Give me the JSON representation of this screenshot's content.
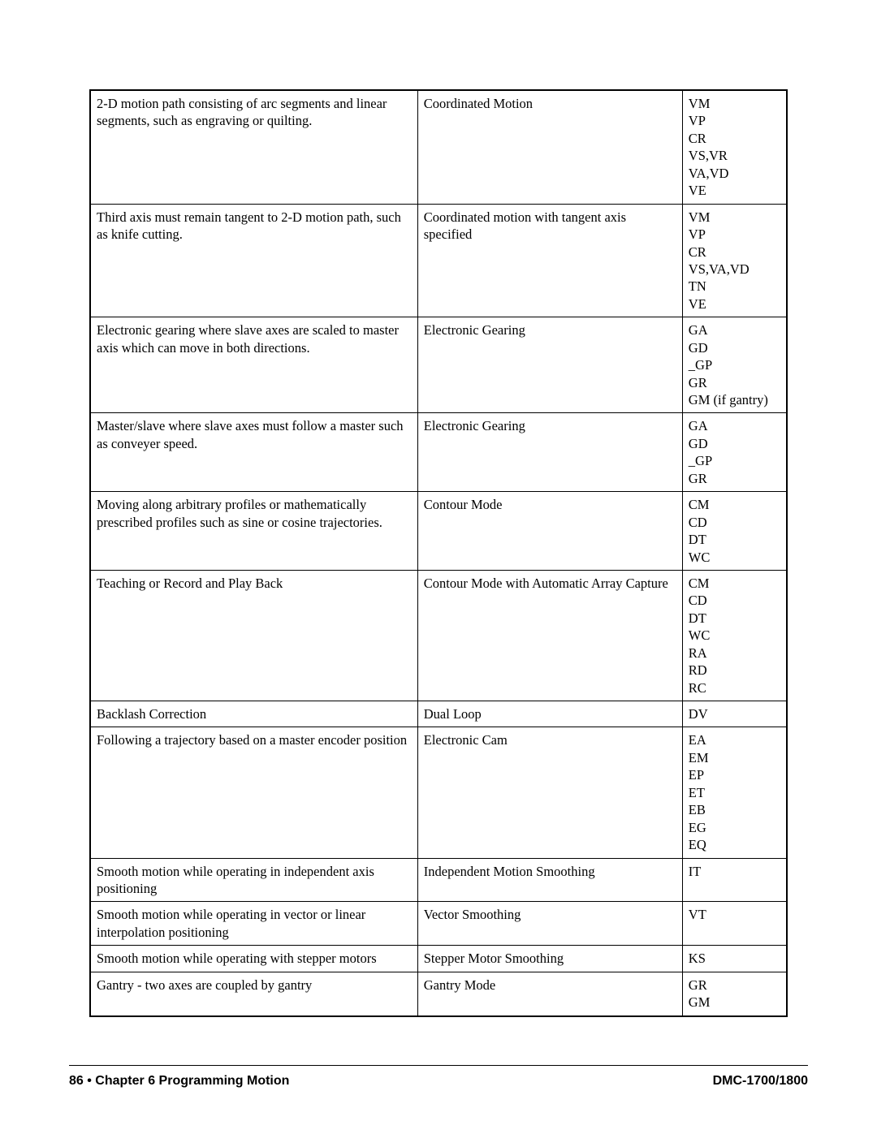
{
  "table": {
    "rows": [
      {
        "desc": "2-D motion path consisting of arc segments and linear segments, such as engraving or quilting.",
        "mode": "Coordinated Motion",
        "cmds": "VM\nVP\nCR\nVS,VR\nVA,VD\nVE"
      },
      {
        "desc": "Third axis must remain tangent to 2-D motion path, such as knife cutting.",
        "mode": "Coordinated motion with tangent axis specified",
        "cmds": "VM\nVP\nCR\nVS,VA,VD\nTN\nVE"
      },
      {
        "desc": "Electronic gearing where slave axes are scaled to master axis which can move in both directions.",
        "mode": "Electronic Gearing",
        "cmds": "GA\nGD\n_GP\nGR\nGM (if gantry)"
      },
      {
        "desc": "Master/slave where slave axes must follow a master such as conveyer speed.",
        "mode": "Electronic Gearing",
        "cmds": "GA\nGD\n_GP\nGR"
      },
      {
        "desc": "Moving along arbitrary profiles or mathematically prescribed profiles such as sine or cosine trajectories.",
        "mode": "Contour Mode",
        "cmds": "CM\nCD\nDT\nWC"
      },
      {
        "desc": "Teaching or Record and Play Back",
        "mode": "Contour Mode with Automatic Array Capture",
        "cmds": "CM\nCD\nDT\nWC\nRA\nRD\nRC"
      },
      {
        "desc": "Backlash Correction",
        "mode": "Dual Loop",
        "cmds": "DV"
      },
      {
        "desc": "Following a trajectory based on a master encoder position",
        "mode": "Electronic Cam",
        "cmds": "EA\nEM\nEP\nET\nEB\nEG\nEQ"
      },
      {
        "desc": "Smooth motion while operating in independent axis positioning",
        "mode": "Independent Motion Smoothing",
        "cmds": "IT"
      },
      {
        "desc": "Smooth motion while operating in vector or linear interpolation positioning",
        "mode": "Vector Smoothing",
        "cmds": "VT"
      },
      {
        "desc": "Smooth motion while operating with stepper motors",
        "mode": "Stepper Motor Smoothing",
        "cmds": "KS"
      },
      {
        "desc": "Gantry - two axes are coupled by gantry",
        "mode": "Gantry Mode",
        "cmds": "GR\nGM"
      }
    ]
  },
  "footer": {
    "page_num": "86",
    "separator": " • ",
    "chapter": "Chapter 6  Programming Motion",
    "doc": "DMC-1700/1800"
  }
}
